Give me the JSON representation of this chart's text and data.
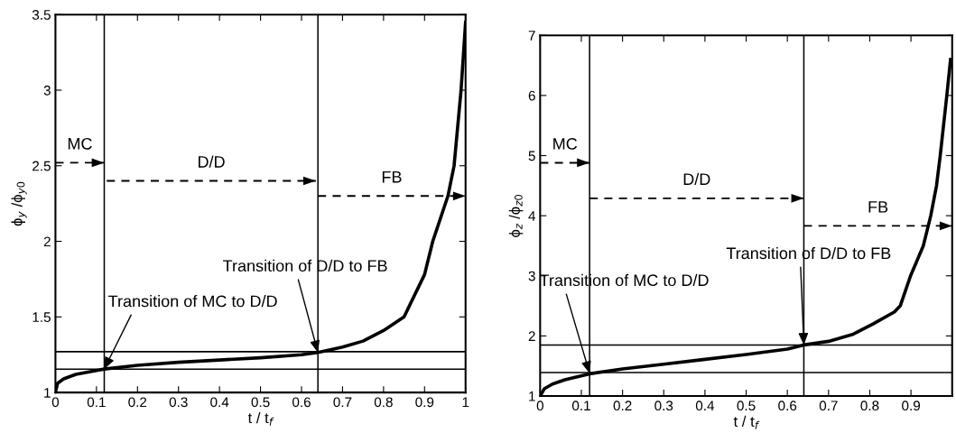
{
  "chart_data": [
    {
      "type": "line",
      "xlabel": "t / t$_{f}$",
      "ylabel": "ϕ$_{y}$ /ϕ$_{y0}$",
      "xlim": [
        0,
        1
      ],
      "ylim": [
        1,
        3.5
      ],
      "xticks": [
        0,
        0.1,
        0.2,
        0.3,
        0.4,
        0.5,
        0.6,
        0.7,
        0.8,
        0.9,
        1
      ],
      "yticks": [
        1,
        1.5,
        2,
        2.5,
        3,
        3.5
      ],
      "grid": false,
      "series": [
        {
          "color": "#000000",
          "x": [
            0,
            0.005,
            0.02,
            0.05,
            0.1,
            0.119,
            0.2,
            0.3,
            0.4,
            0.5,
            0.6,
            0.64,
            0.7,
            0.75,
            0.8,
            0.85,
            0.9,
            0.92,
            0.957,
            0.972,
            0.989,
            1.0
          ],
          "values": [
            1.0,
            1.06,
            1.09,
            1.12,
            1.145,
            1.155,
            1.18,
            1.2,
            1.215,
            1.23,
            1.25,
            1.265,
            1.3,
            1.34,
            1.41,
            1.5,
            1.78,
            2.0,
            2.3,
            2.5,
            3.0,
            3.45
          ]
        },
        {
          "color": "#000000",
          "line_style": "dashed",
          "x": [
            0,
            0.119
          ],
          "values": [
            2.52,
            2.52
          ]
        },
        {
          "color": "#000000",
          "line_style": "dashed",
          "x": [
            0.125,
            0.635
          ],
          "values": [
            2.4,
            2.4
          ]
        },
        {
          "color": "#000000",
          "line_style": "dashed",
          "x": [
            0.64,
            1.0
          ],
          "values": [
            2.3,
            2.3
          ]
        }
      ],
      "ref_lines": [
        {
          "axis": "x",
          "value": 0.119,
          "color": "#000000"
        },
        {
          "axis": "x",
          "value": 0.64,
          "color": "#000000"
        },
        {
          "axis": "y",
          "value": 1.155,
          "color": "#000000"
        },
        {
          "axis": "y",
          "value": 1.27,
          "color": "#000000"
        }
      ],
      "annotations": [
        "MC",
        "D/D",
        "FB",
        {
          "text": "Transition of MC to D/D",
          "x": 0.119,
          "y": 1.155
        },
        {
          "text": "Transition of D/D to FB",
          "x": 0.64,
          "y": 1.265
        }
      ]
    },
    {
      "type": "line",
      "xlabel": "t / t$_{f}$",
      "ylabel": "ϕ$_{z}$ /ϕ$_{z0}$",
      "xlim": [
        0,
        1
      ],
      "ylim": [
        1,
        7
      ],
      "xticks": [
        0,
        0.1,
        0.2,
        0.3,
        0.4,
        0.5,
        0.6,
        0.7,
        0.8,
        0.9
      ],
      "yticks": [
        1,
        2,
        3,
        4,
        5,
        6,
        7
      ],
      "grid": false,
      "series": [
        {
          "color": "#000000",
          "x": [
            0,
            0.01,
            0.03,
            0.06,
            0.12,
            0.2,
            0.3,
            0.4,
            0.5,
            0.6,
            0.64,
            0.7,
            0.76,
            0.808,
            0.86,
            0.874,
            0.899,
            0.93,
            0.948,
            0.962,
            0.971,
            0.987,
            0.996
          ],
          "values": [
            1.0,
            1.12,
            1.2,
            1.27,
            1.37,
            1.45,
            1.53,
            1.61,
            1.69,
            1.78,
            1.85,
            1.91,
            2.03,
            2.2,
            2.4,
            2.5,
            3.0,
            3.5,
            4.0,
            4.5,
            5.0,
            6.0,
            6.6
          ]
        },
        {
          "color": "#000000",
          "line_style": "dashed",
          "x": [
            0,
            0.12
          ],
          "values": [
            4.88,
            4.88
          ]
        },
        {
          "color": "#000000",
          "line_style": "dashed",
          "x": [
            0.12,
            0.64
          ],
          "values": [
            4.29,
            4.29
          ]
        },
        {
          "color": "#000000",
          "line_style": "dashed",
          "x": [
            0.64,
            1.0
          ],
          "values": [
            3.83,
            3.83
          ]
        }
      ],
      "ref_lines": [
        {
          "axis": "x",
          "value": 0.12,
          "color": "#000000"
        },
        {
          "axis": "x",
          "value": 0.64,
          "color": "#000000"
        },
        {
          "axis": "y",
          "value": 1.39,
          "color": "#000000"
        },
        {
          "axis": "y",
          "value": 1.85,
          "color": "#000000"
        }
      ],
      "annotations": [
        "MC",
        "D/D",
        "FB",
        {
          "text": "Transition of MC to D/D",
          "x": 0.12,
          "y": 1.38
        },
        {
          "text": "Transition of D/D to FB",
          "x": 0.64,
          "y": 1.85
        }
      ]
    }
  ]
}
